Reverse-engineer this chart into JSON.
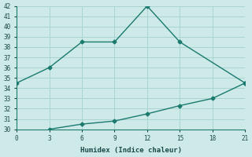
{
  "line1_x": [
    0,
    3,
    6,
    9,
    12,
    15,
    21
  ],
  "line1_y": [
    34.5,
    36.0,
    38.5,
    38.5,
    42.0,
    38.5,
    34.5
  ],
  "line2_x": [
    3,
    6,
    9,
    12,
    15,
    18,
    21
  ],
  "line2_y": [
    30.0,
    30.5,
    30.8,
    31.5,
    32.3,
    33.0,
    34.5
  ],
  "line_color": "#1a7a6e",
  "bg_color": "#ceeae8",
  "grid_color": "#a8d4d0",
  "xlabel": "Humidex (Indice chaleur)",
  "ylim": [
    30,
    42
  ],
  "xlim": [
    0,
    21
  ],
  "xticks": [
    0,
    3,
    6,
    9,
    12,
    15,
    18,
    21
  ],
  "yticks": [
    30,
    31,
    32,
    33,
    34,
    35,
    36,
    37,
    38,
    39,
    40,
    41,
    42
  ],
  "markersize": 2.5,
  "linewidth": 1.0
}
